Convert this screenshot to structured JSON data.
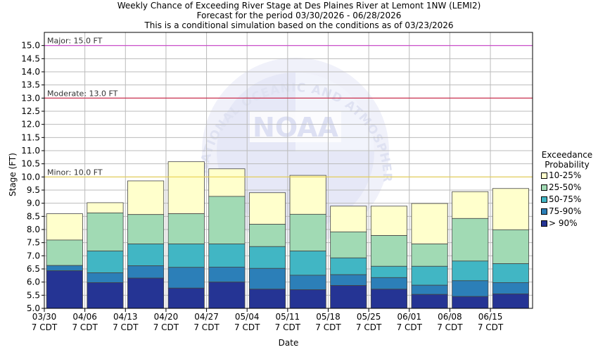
{
  "title_lines": [
    "Weekly Chance of Exceeding River Stage at Des Plaines River at Lemont 1NW (LEMI2)",
    "Forecast for the period 03/30/2026 - 06/28/2026",
    "This is a conditional simulation based on the conditions as of 03/23/2026"
  ],
  "watermark": "NATIONAL OCEANIC AND ATMOSPHERIC ADMINISTRATION",
  "colors": {
    "gt90": "#253494",
    "p75_90": "#2c7fb8",
    "p50_75": "#41b6c4",
    "p25_50": "#a1dab4",
    "p10_25": "#ffffcc",
    "major": "#cc44cc",
    "moderate": "#cc2244",
    "minor": "#e8d050",
    "grid": "#bbbbbb"
  },
  "chart_data": {
    "type": "bar",
    "xlabel": "Date",
    "ylabel": "Stage (FT)",
    "ylim": [
      5.0,
      15.5
    ],
    "yticks": [
      "5.0",
      "5.5",
      "6.0",
      "6.5",
      "7.0",
      "7.5",
      "8.0",
      "8.5",
      "9.0",
      "9.5",
      "10.0",
      "10.5",
      "11.0",
      "11.5",
      "12.0",
      "12.5",
      "13.0",
      "13.5",
      "14.0",
      "14.5",
      "15.0"
    ],
    "xticks": [
      {
        "date": "03/30",
        "tz": "7 CDT"
      },
      {
        "date": "04/06",
        "tz": "7 CDT"
      },
      {
        "date": "04/13",
        "tz": "7 CDT"
      },
      {
        "date": "04/20",
        "tz": "7 CDT"
      },
      {
        "date": "04/27",
        "tz": "7 CDT"
      },
      {
        "date": "05/04",
        "tz": "7 CDT"
      },
      {
        "date": "05/11",
        "tz": "7 CDT"
      },
      {
        "date": "05/18",
        "tz": "7 CDT"
      },
      {
        "date": "05/25",
        "tz": "7 CDT"
      },
      {
        "date": "06/01",
        "tz": "7 CDT"
      },
      {
        "date": "06/08",
        "tz": "7 CDT"
      },
      {
        "date": "06/15",
        "tz": "7 CDT"
      }
    ],
    "thresholds": [
      {
        "label": "Major: 15.0 FT",
        "value": 15.0,
        "color_key": "major"
      },
      {
        "label": "Moderate: 13.0 FT",
        "value": 13.0,
        "color_key": "moderate"
      },
      {
        "label": "Minor: 10.0 FT",
        "value": 10.0,
        "color_key": "minor"
      }
    ],
    "legend": {
      "title_lines": [
        "Exceedance",
        "Probability"
      ],
      "placement": "right",
      "items": [
        {
          "label": "10-25%",
          "color_key": "p10_25"
        },
        {
          "label": "25-50%",
          "color_key": "p25_50"
        },
        {
          "label": "50-75%",
          "color_key": "p50_75"
        },
        {
          "label": "75-90%",
          "color_key": "p75_90"
        },
        {
          "label": "> 90%",
          "color_key": "gt90"
        }
      ]
    },
    "bars": [
      {
        "week": "03/30",
        "gt90": 6.43,
        "p75_90": 6.63,
        "p50_75": 6.63,
        "p25_50": 7.6,
        "p10_25": 8.6
      },
      {
        "week": "04/06",
        "gt90": 5.98,
        "p75_90": 6.35,
        "p50_75": 7.18,
        "p25_50": 8.63,
        "p10_25": 9.02
      },
      {
        "week": "04/13",
        "gt90": 6.15,
        "p75_90": 6.62,
        "p50_75": 7.45,
        "p25_50": 8.57,
        "p10_25": 9.85
      },
      {
        "week": "04/20",
        "gt90": 5.77,
        "p75_90": 6.56,
        "p50_75": 7.45,
        "p25_50": 8.6,
        "p10_25": 10.58
      },
      {
        "week": "04/27",
        "gt90": 6.0,
        "p75_90": 6.57,
        "p50_75": 7.45,
        "p25_50": 9.26,
        "p10_25": 10.31
      },
      {
        "week": "05/04",
        "gt90": 5.73,
        "p75_90": 6.52,
        "p50_75": 7.35,
        "p25_50": 8.2,
        "p10_25": 9.4
      },
      {
        "week": "05/11",
        "gt90": 5.71,
        "p75_90": 6.26,
        "p50_75": 7.18,
        "p25_50": 8.58,
        "p10_25": 10.06
      },
      {
        "week": "05/18",
        "gt90": 5.87,
        "p75_90": 6.28,
        "p50_75": 6.92,
        "p25_50": 7.91,
        "p10_25": 8.89
      },
      {
        "week": "05/25",
        "gt90": 5.73,
        "p75_90": 6.17,
        "p50_75": 6.6,
        "p25_50": 7.77,
        "p10_25": 8.89
      },
      {
        "week": "06/01",
        "gt90": 5.53,
        "p75_90": 5.88,
        "p50_75": 6.6,
        "p25_50": 7.45,
        "p10_25": 8.99
      },
      {
        "week": "06/08",
        "gt90": 5.45,
        "p75_90": 6.05,
        "p50_75": 6.8,
        "p25_50": 8.42,
        "p10_25": 9.44
      },
      {
        "week": "06/15",
        "gt90": 5.55,
        "p75_90": 5.98,
        "p50_75": 6.7,
        "p25_50": 7.99,
        "p10_25": 9.56
      }
    ]
  }
}
